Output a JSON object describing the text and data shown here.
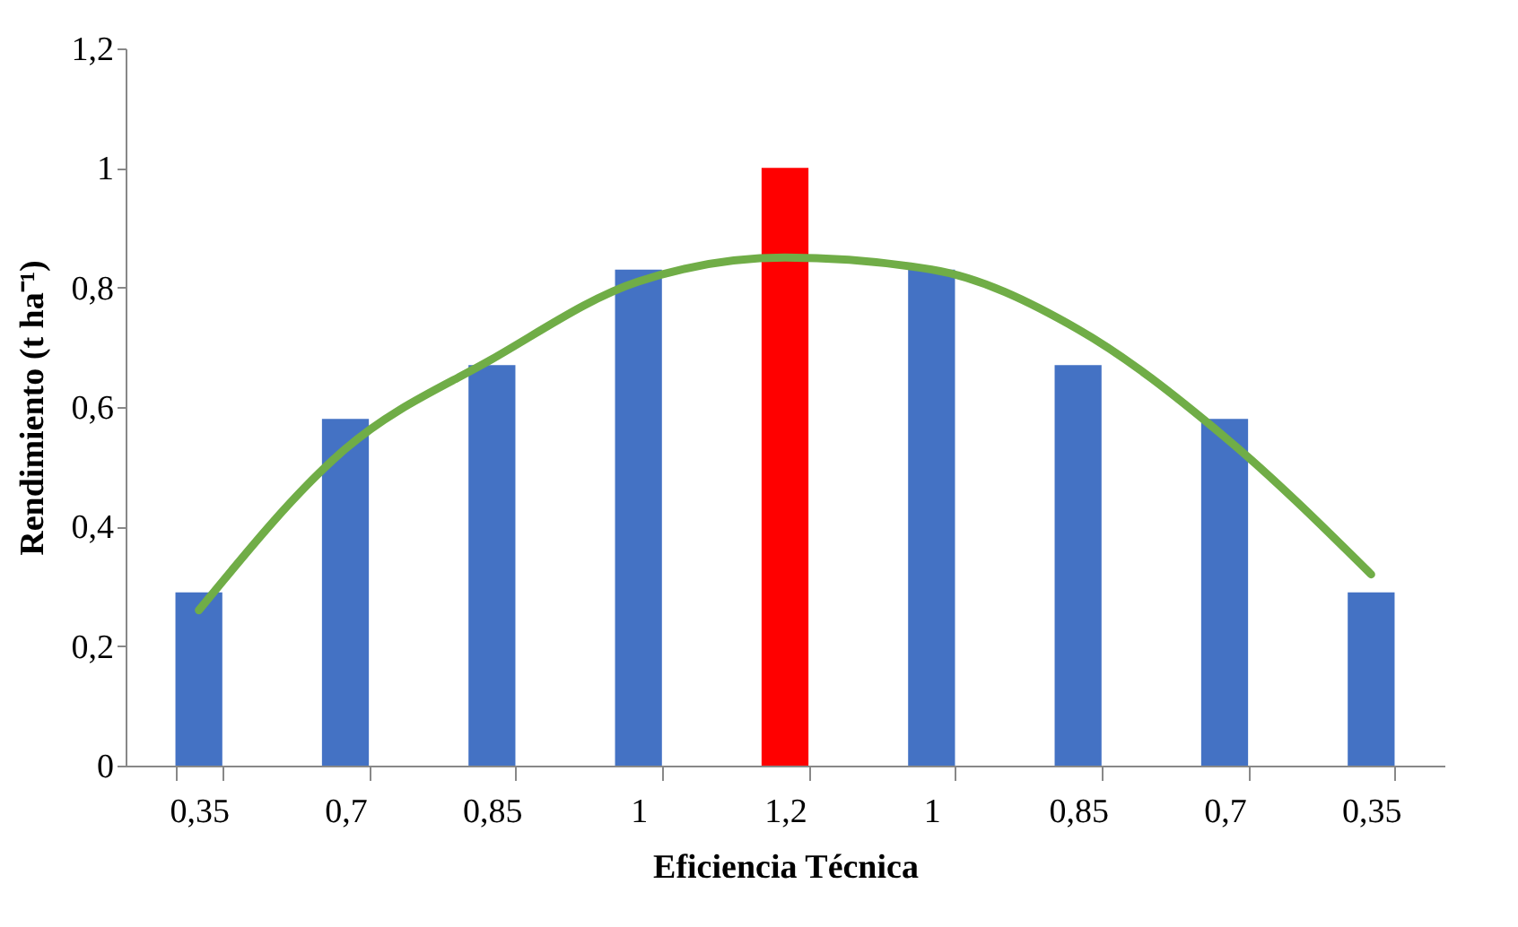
{
  "chart_data": {
    "type": "bar",
    "xlabel": "Eficiencia Técnica",
    "ylabel": "Rendimiento (t ha⁻¹)",
    "categories": [
      "0,35",
      "0,7",
      "0,85",
      "1",
      "1,2",
      "1",
      "0,85",
      "0,7",
      "0,35"
    ],
    "series": [
      {
        "colors": [
          "#4472c4",
          "#4472c4",
          "#4472c4",
          "#4472c4",
          "#ff0000",
          "#4472c4",
          "#4472c4",
          "#4472c4",
          "#4472c4"
        ],
        "values": [
          0.29,
          0.58,
          0.67,
          0.83,
          1.0,
          0.83,
          0.67,
          0.58,
          0.29
        ]
      },
      {
        "type": "line",
        "color": "#70ad47",
        "values": [
          0.26,
          0.53,
          0.68,
          0.81,
          0.85,
          0.83,
          0.73,
          0.55,
          0.32
        ]
      }
    ],
    "ylim": [
      0,
      1.2
    ],
    "yticks": [
      0,
      {
        "value": 0.2,
        "label": "0,2"
      },
      {
        "value": 0.4,
        "label": "0,4"
      },
      {
        "value": 0.6,
        "label": "0,6"
      },
      {
        "value": 0.8,
        "label": "0,8"
      },
      1,
      {
        "value": 1.2,
        "label": "1,2"
      }
    ],
    "marker": "none",
    "line_style": "solid"
  }
}
